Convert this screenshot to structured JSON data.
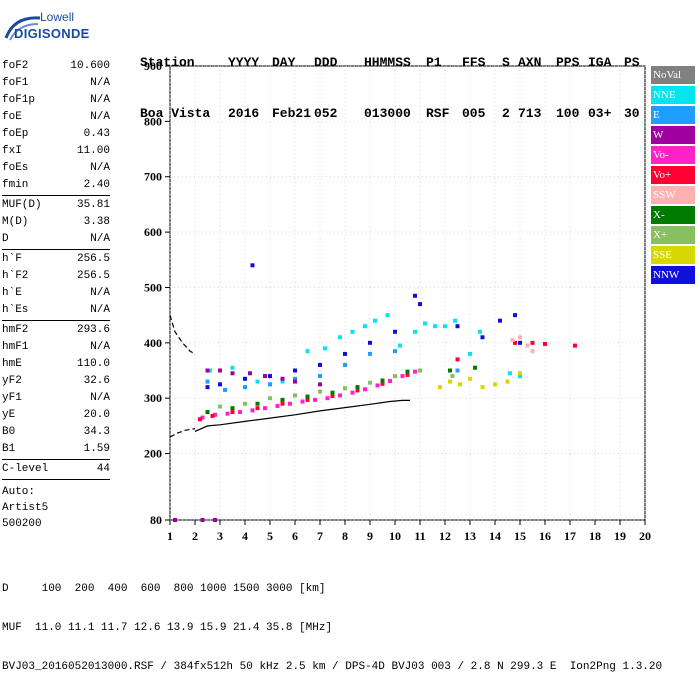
{
  "logo": {
    "line1": "Lowell",
    "line2": "DIGISONDE"
  },
  "header": {
    "labels": [
      "Station",
      "YYYY",
      "DAY",
      "DDD",
      "HHMMSS",
      "P1",
      "FFS",
      "S",
      "AXN",
      "PPS",
      "IGA",
      "PS"
    ],
    "values": [
      "Boa Vista",
      "2016",
      "Feb21",
      "052",
      "013000",
      "RSF",
      "005",
      "2",
      "713",
      "100",
      "03+",
      "30"
    ]
  },
  "params": {
    "g1": [
      [
        "foF2",
        "10.600"
      ],
      [
        "foF1",
        "N/A"
      ],
      [
        "foF1p",
        "N/A"
      ],
      [
        "foE",
        "N/A"
      ],
      [
        "foEp",
        "0.43"
      ],
      [
        "fxI",
        "11.00"
      ],
      [
        "foEs",
        "N/A"
      ],
      [
        "fmin",
        "2.40"
      ]
    ],
    "g2": [
      [
        "MUF(D)",
        "35.81"
      ],
      [
        "M(D)",
        "3.38"
      ],
      [
        "D",
        "N/A"
      ]
    ],
    "g3": [
      [
        "h`F",
        "256.5"
      ],
      [
        "h`F2",
        "256.5"
      ],
      [
        "h`E",
        "N/A"
      ],
      [
        "h`Es",
        "N/A"
      ]
    ],
    "g4": [
      [
        "hmF2",
        "293.6"
      ],
      [
        "hmF1",
        "N/A"
      ],
      [
        "hmE",
        "110.0"
      ],
      [
        "yF2",
        "32.6"
      ],
      [
        "yF1",
        "N/A"
      ],
      [
        "yE",
        "20.0"
      ],
      [
        "B0",
        "34.3"
      ],
      [
        "B1",
        "1.59"
      ]
    ],
    "g5": [
      [
        "C-level",
        "44"
      ]
    ]
  },
  "auto": {
    "line1": "Auto:",
    "line2": "Artist5",
    "line3": "500200"
  },
  "legend": [
    {
      "label": "NoVal",
      "color": "#808080"
    },
    {
      "label": "NNE",
      "color": "#00e5ee"
    },
    {
      "label": "E",
      "color": "#1e9fff"
    },
    {
      "label": "W",
      "color": "#a000a0"
    },
    {
      "label": "Vo-",
      "color": "#ff22c8"
    },
    {
      "label": "Vo+",
      "color": "#ff0033"
    },
    {
      "label": "SSW",
      "color": "#ffb0b0"
    },
    {
      "label": "X-",
      "color": "#007a00"
    },
    {
      "label": "X+",
      "color": "#88c060"
    },
    {
      "label": "SSE",
      "color": "#d8d800"
    },
    {
      "label": "NNW",
      "color": "#1010dd"
    }
  ],
  "footer": {
    "line1": "D     100  200  400  600  800 1000 1500 3000 [km]",
    "line2": "MUF  11.0 11.1 11.7 12.6 13.9 15.9 21.4 35.8 [MHz]",
    "line3": "BVJ03_2016052013000.RSF / 384fx512h 50 kHz 2.5 km / DPS-4D BVJ03 003 / 2.8 N 299.3 E  Ion2Png 1.3.20"
  },
  "chart_data": {
    "type": "scatter",
    "title": "",
    "xlabel": "",
    "ylabel": "",
    "xlim": [
      1,
      20
    ],
    "ylim": [
      80,
      900
    ],
    "xticks": [
      1,
      2,
      3,
      4,
      5,
      6,
      7,
      8,
      9,
      10,
      11,
      12,
      13,
      14,
      15,
      16,
      17,
      18,
      19,
      20
    ],
    "yticks": [
      80,
      200,
      300,
      400,
      500,
      600,
      700,
      800,
      900
    ],
    "ytick_labels": [
      "80",
      "200",
      "300",
      "400",
      "500",
      "600",
      "700",
      "800",
      "900"
    ],
    "grid": true,
    "series": [
      {
        "name": "NNE",
        "color": "#00e5ee",
        "points": [
          [
            2.6,
            350
          ],
          [
            3.5,
            355
          ],
          [
            4.5,
            330
          ],
          [
            5.5,
            330
          ],
          [
            6.5,
            385
          ],
          [
            7.2,
            390
          ],
          [
            7.8,
            410
          ],
          [
            8.3,
            420
          ],
          [
            8.8,
            430
          ],
          [
            9.2,
            440
          ],
          [
            9.7,
            450
          ],
          [
            10.2,
            395
          ],
          [
            10.8,
            420
          ],
          [
            11.2,
            435
          ],
          [
            11.6,
            430
          ],
          [
            12.0,
            430
          ],
          [
            12.4,
            440
          ],
          [
            13.0,
            380
          ],
          [
            13.4,
            420
          ],
          [
            14.6,
            345
          ],
          [
            15.0,
            340
          ]
        ]
      },
      {
        "name": "E",
        "color": "#1e9fff",
        "points": [
          [
            2.5,
            330
          ],
          [
            3.2,
            315
          ],
          [
            4.0,
            320
          ],
          [
            5.0,
            325
          ],
          [
            6.0,
            335
          ],
          [
            7.0,
            340
          ],
          [
            8.0,
            360
          ],
          [
            9.0,
            380
          ],
          [
            10.0,
            385
          ],
          [
            11.0,
            350
          ],
          [
            12.5,
            350
          ],
          [
            14.5,
            330
          ]
        ]
      },
      {
        "name": "W",
        "color": "#a000a0",
        "points": [
          [
            1.2,
            80
          ],
          [
            2.5,
            350
          ],
          [
            3.0,
            350
          ],
          [
            3.5,
            345
          ],
          [
            4.2,
            345
          ],
          [
            4.8,
            340
          ],
          [
            5.5,
            335
          ],
          [
            6.0,
            330
          ],
          [
            7.0,
            325
          ],
          [
            2.3,
            80
          ],
          [
            2.8,
            80
          ]
        ]
      },
      {
        "name": "Vo-",
        "color": "#ff22c8",
        "points": [
          [
            2.3,
            265
          ],
          [
            2.8,
            270
          ],
          [
            3.3,
            272
          ],
          [
            3.8,
            275
          ],
          [
            4.3,
            278
          ],
          [
            4.8,
            282
          ],
          [
            5.3,
            286
          ],
          [
            5.8,
            290
          ],
          [
            6.3,
            294
          ],
          [
            6.8,
            297
          ],
          [
            7.3,
            300
          ],
          [
            7.8,
            305
          ],
          [
            8.3,
            310
          ],
          [
            8.8,
            316
          ],
          [
            9.3,
            323
          ],
          [
            9.8,
            331
          ],
          [
            10.3,
            340
          ],
          [
            10.8,
            348
          ]
        ]
      },
      {
        "name": "Vo+",
        "color": "#ff0033",
        "points": [
          [
            2.2,
            262
          ],
          [
            2.7,
            268
          ],
          [
            3.5,
            275
          ],
          [
            4.5,
            282
          ],
          [
            5.5,
            290
          ],
          [
            6.5,
            297
          ],
          [
            7.5,
            304
          ],
          [
            8.5,
            314
          ],
          [
            9.5,
            326
          ],
          [
            10.5,
            342
          ],
          [
            12.5,
            370
          ],
          [
            14.8,
            400
          ],
          [
            15.5,
            400
          ],
          [
            16.0,
            398
          ],
          [
            17.2,
            395
          ]
        ]
      },
      {
        "name": "SSW",
        "color": "#ffb0b0",
        "points": [
          [
            14.7,
            405
          ],
          [
            15.0,
            410
          ],
          [
            15.3,
            395
          ],
          [
            15.5,
            385
          ]
        ]
      },
      {
        "name": "X-",
        "color": "#007a00",
        "points": [
          [
            2.5,
            275
          ],
          [
            3.5,
            282
          ],
          [
            4.5,
            290
          ],
          [
            5.5,
            297
          ],
          [
            6.5,
            303
          ],
          [
            7.5,
            310
          ],
          [
            8.5,
            320
          ],
          [
            9.5,
            332
          ],
          [
            10.5,
            348
          ],
          [
            12.2,
            350
          ],
          [
            13.2,
            355
          ]
        ]
      },
      {
        "name": "X+",
        "color": "#88c060",
        "points": [
          [
            3.0,
            285
          ],
          [
            4.0,
            290
          ],
          [
            5.0,
            300
          ],
          [
            6.0,
            305
          ],
          [
            7.0,
            312
          ],
          [
            8.0,
            318
          ],
          [
            9.0,
            328
          ],
          [
            10.0,
            340
          ],
          [
            11.0,
            350
          ],
          [
            12.3,
            340
          ]
        ]
      },
      {
        "name": "SSE",
        "color": "#d8d800",
        "points": [
          [
            11.8,
            320
          ],
          [
            12.2,
            330
          ],
          [
            12.6,
            325
          ],
          [
            13.0,
            335
          ],
          [
            13.5,
            320
          ],
          [
            14.0,
            325
          ],
          [
            14.5,
            330
          ],
          [
            15.0,
            345
          ]
        ]
      },
      {
        "name": "NNW",
        "color": "#1010dd",
        "points": [
          [
            2.5,
            320
          ],
          [
            3.0,
            325
          ],
          [
            4.0,
            335
          ],
          [
            4.3,
            540
          ],
          [
            5.0,
            340
          ],
          [
            6.0,
            350
          ],
          [
            7.0,
            360
          ],
          [
            8.0,
            380
          ],
          [
            9.0,
            400
          ],
          [
            10.0,
            420
          ],
          [
            10.8,
            485
          ],
          [
            11.0,
            470
          ],
          [
            12.5,
            430
          ],
          [
            13.5,
            410
          ],
          [
            14.2,
            440
          ],
          [
            14.8,
            450
          ],
          [
            15.0,
            400
          ]
        ]
      }
    ],
    "profile": {
      "x": [
        2.0,
        2.5,
        3.0,
        4.0,
        5.0,
        6.0,
        7.0,
        8.0,
        9.0,
        9.8,
        10.3,
        10.6
      ],
      "y": [
        240,
        250,
        252,
        258,
        264,
        270,
        277,
        283,
        289,
        294,
        296,
        296
      ]
    },
    "extrapolation_upper": {
      "x": [
        1.0,
        1.2,
        1.5,
        1.8,
        2.0
      ],
      "y": [
        450,
        420,
        400,
        385,
        380
      ]
    },
    "extrapolation_lower": {
      "x": [
        1.0,
        1.3,
        1.6,
        2.0
      ],
      "y": [
        230,
        237,
        242,
        245
      ]
    }
  }
}
